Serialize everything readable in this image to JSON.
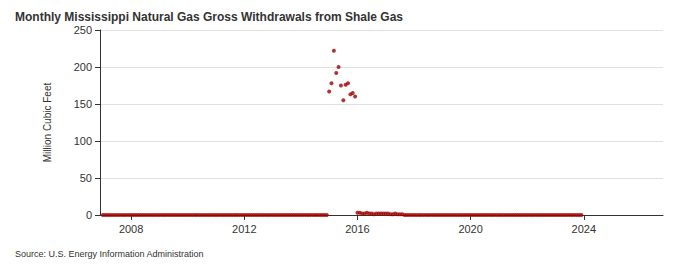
{
  "chart_data": {
    "type": "scatter",
    "title": "Monthly Mississippi Natural Gas Gross Withdrawals from Shale Gas",
    "y_label": "Million Cubic Feet",
    "annotation": "Source: U.S. Energy Information Administration",
    "color": "#a00000",
    "marker": "circle",
    "grid": true,
    "xlim": [
      2006.9,
      2026.8
    ],
    "xticks": [
      2008,
      2012,
      2016,
      2020,
      2024
    ],
    "ylim": [
      0,
      250
    ],
    "yticks": [
      0,
      50,
      100,
      150,
      200,
      250
    ],
    "x": [
      2007,
      2007.083,
      2007.167,
      2007.25,
      2007.333,
      2007.417,
      2007.5,
      2007.583,
      2007.667,
      2007.75,
      2007.833,
      2007.917,
      2008,
      2008.083,
      2008.167,
      2008.25,
      2008.333,
      2008.417,
      2008.5,
      2008.583,
      2008.667,
      2008.75,
      2008.833,
      2008.917,
      2009,
      2009.083,
      2009.167,
      2009.25,
      2009.333,
      2009.417,
      2009.5,
      2009.583,
      2009.667,
      2009.75,
      2009.833,
      2009.917,
      2010,
      2010.083,
      2010.167,
      2010.25,
      2010.333,
      2010.417,
      2010.5,
      2010.583,
      2010.667,
      2010.75,
      2010.833,
      2010.917,
      2011,
      2011.083,
      2011.167,
      2011.25,
      2011.333,
      2011.417,
      2011.5,
      2011.583,
      2011.667,
      2011.75,
      2011.833,
      2011.917,
      2012,
      2012.083,
      2012.167,
      2012.25,
      2012.333,
      2012.417,
      2012.5,
      2012.583,
      2012.667,
      2012.75,
      2012.833,
      2012.917,
      2013,
      2013.083,
      2013.167,
      2013.25,
      2013.333,
      2013.417,
      2013.5,
      2013.583,
      2013.667,
      2013.75,
      2013.833,
      2013.917,
      2014,
      2014.083,
      2014.167,
      2014.25,
      2014.333,
      2014.417,
      2014.5,
      2014.583,
      2014.667,
      2014.75,
      2014.833,
      2014.917,
      2015,
      2015.083,
      2015.167,
      2015.25,
      2015.333,
      2015.417,
      2015.5,
      2015.583,
      2015.667,
      2015.75,
      2015.833,
      2015.917,
      2016,
      2016.083,
      2016.167,
      2016.25,
      2016.333,
      2016.417,
      2016.5,
      2016.583,
      2016.667,
      2016.75,
      2016.833,
      2016.917,
      2017,
      2017.083,
      2017.167,
      2017.25,
      2017.333,
      2017.417,
      2017.5,
      2017.583,
      2017.667,
      2017.75,
      2017.833,
      2017.917,
      2018,
      2018.083,
      2018.167,
      2018.25,
      2018.333,
      2018.417,
      2018.5,
      2018.583,
      2018.667,
      2018.75,
      2018.833,
      2018.917,
      2019,
      2019.083,
      2019.167,
      2019.25,
      2019.333,
      2019.417,
      2019.5,
      2019.583,
      2019.667,
      2019.75,
      2019.833,
      2019.917,
      2020,
      2020.083,
      2020.167,
      2020.25,
      2020.333,
      2020.417,
      2020.5,
      2020.583,
      2020.667,
      2020.75,
      2020.833,
      2020.917,
      2021,
      2021.083,
      2021.167,
      2021.25,
      2021.333,
      2021.417,
      2021.5,
      2021.583,
      2021.667,
      2021.75,
      2021.833,
      2021.917,
      2022,
      2022.083,
      2022.167,
      2022.25,
      2022.333,
      2022.417,
      2022.5,
      2022.583,
      2022.667,
      2022.75,
      2022.833,
      2022.917,
      2023,
      2023.083,
      2023.167,
      2023.25,
      2023.333,
      2023.417,
      2023.5,
      2023.583,
      2023.667,
      2023.75,
      2023.833,
      2023.917
    ],
    "values": [
      0,
      0,
      0,
      0,
      0,
      0,
      0,
      0,
      0,
      0,
      0,
      0,
      0,
      0,
      0,
      0,
      0,
      0,
      0,
      0,
      0,
      0,
      0,
      0,
      0,
      0,
      0,
      0,
      0,
      0,
      0,
      0,
      0,
      0,
      0,
      0,
      0,
      0,
      0,
      0,
      0,
      0,
      0,
      0,
      0,
      0,
      0,
      0,
      0,
      0,
      0,
      0,
      0,
      0,
      0,
      0,
      0,
      0,
      0,
      0,
      0,
      0,
      0,
      0,
      0,
      0,
      0,
      0,
      0,
      0,
      0,
      0,
      0,
      0,
      0,
      0,
      0,
      0,
      0,
      0,
      0,
      0,
      0,
      0,
      0,
      0,
      0,
      0,
      0,
      0,
      0,
      0,
      0,
      0,
      0,
      0,
      167,
      178,
      222,
      192,
      200,
      175,
      155,
      176,
      178,
      163,
      165,
      160,
      3,
      3,
      2,
      2,
      3,
      2,
      2,
      1,
      2,
      2,
      2,
      2,
      2,
      2,
      1,
      1,
      2,
      1,
      1,
      1,
      0,
      0,
      0,
      0,
      0,
      0,
      0,
      0,
      0,
      0,
      0,
      0,
      0,
      0,
      0,
      0,
      0,
      0,
      0,
      0,
      0,
      0,
      0,
      0,
      0,
      0,
      0,
      0,
      0,
      0,
      0,
      0,
      0,
      0,
      0,
      0,
      0,
      0,
      0,
      0,
      0,
      0,
      0,
      0,
      0,
      0,
      0,
      0,
      0,
      0,
      0,
      0,
      0,
      0,
      0,
      0,
      0,
      0,
      0,
      0,
      0,
      0,
      0,
      0,
      0,
      0,
      0,
      0,
      0,
      0,
      0,
      0,
      0,
      0,
      0,
      0
    ]
  }
}
